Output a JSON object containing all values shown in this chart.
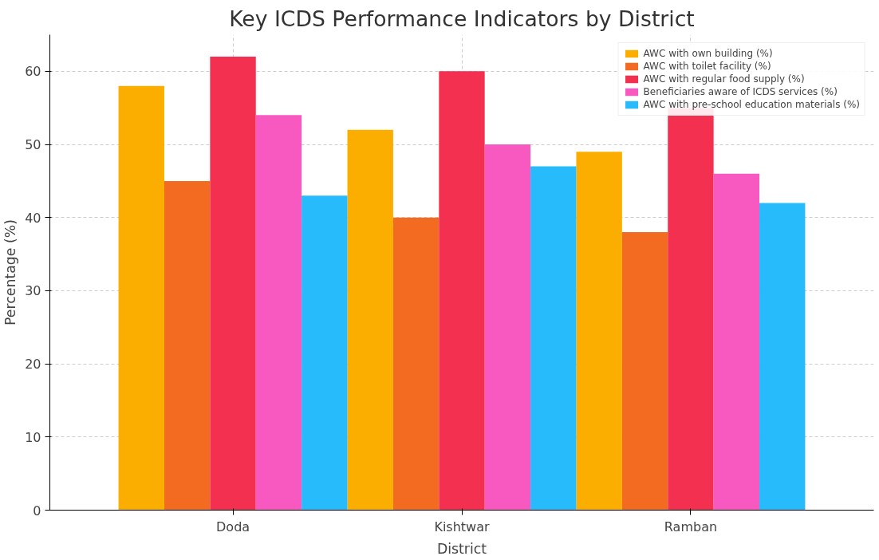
{
  "chart_data": {
    "type": "bar",
    "title": "Key ICDS Performance Indicators by District",
    "xlabel": "District",
    "ylabel": "Percentage (%)",
    "categories": [
      "Doda",
      "Kishtwar",
      "Ramban"
    ],
    "series": [
      {
        "name": "AWC with own building (%)",
        "color": "#fbae00",
        "values": [
          58,
          52,
          49
        ]
      },
      {
        "name": "AWC with toilet facility (%)",
        "color": "#f26b21",
        "values": [
          45,
          40,
          38
        ]
      },
      {
        "name": "AWC with regular food supply (%)",
        "color": "#f33050",
        "values": [
          62,
          60,
          55
        ]
      },
      {
        "name": "Beneficiaries aware of ICDS services (%)",
        "color": "#f859c0",
        "values": [
          54,
          50,
          46
        ]
      },
      {
        "name": "AWC with pre-school education materials (%)",
        "color": "#27bbfb",
        "values": [
          43,
          47,
          42
        ]
      }
    ],
    "ylim": [
      0,
      65
    ],
    "yticks": [
      0,
      10,
      20,
      30,
      40,
      50,
      60
    ],
    "grid": true,
    "legend": "top right"
  }
}
